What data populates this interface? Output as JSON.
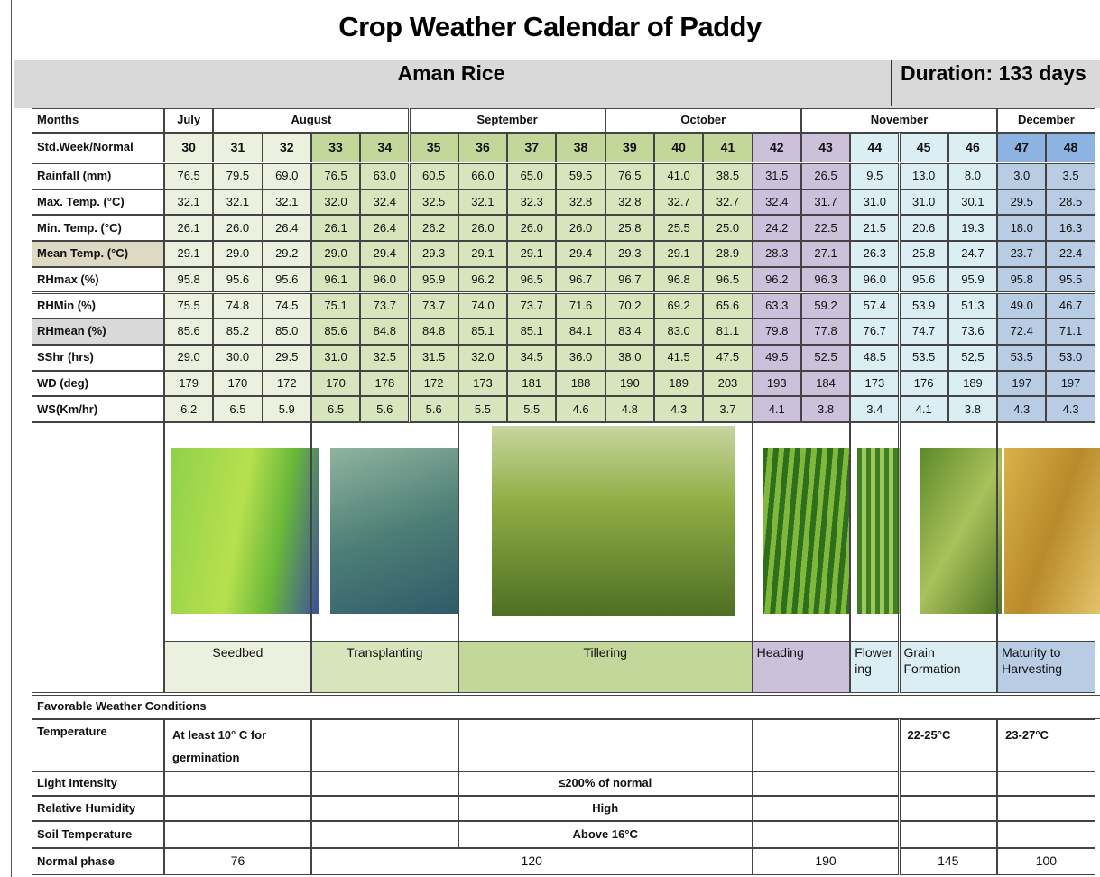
{
  "title": "Crop Weather Calendar of Paddy",
  "header": {
    "crop": "Aman Rice",
    "duration": "Duration: 133 days"
  },
  "months": {
    "label": "Months",
    "names": [
      "July",
      "August",
      "September",
      "October",
      "November",
      "December"
    ]
  },
  "weeks": {
    "label": "Std.Week/Normal",
    "values": [
      30,
      31,
      32,
      33,
      34,
      35,
      36,
      37,
      38,
      39,
      40,
      41,
      42,
      43,
      44,
      45,
      46,
      47,
      48
    ]
  },
  "rows": [
    {
      "label": "Rainfall (mm)",
      "values": [
        "76.5",
        "79.5",
        "69.0",
        "76.5",
        "63.0",
        "60.5",
        "66.0",
        "65.0",
        "59.5",
        "76.5",
        "41.0",
        "38.5",
        "31.5",
        "26.5",
        "9.5",
        "13.0",
        "8.0",
        "3.0",
        "3.5"
      ]
    },
    {
      "label": "Max. Temp. (°C)",
      "values": [
        "32.1",
        "32.1",
        "32.1",
        "32.0",
        "32.4",
        "32.5",
        "32.1",
        "32.3",
        "32.8",
        "32.8",
        "32.7",
        "32.7",
        "32.4",
        "31.7",
        "31.0",
        "31.0",
        "30.1",
        "29.5",
        "28.5"
      ]
    },
    {
      "label": "Min. Temp. (°C)",
      "values": [
        "26.1",
        "26.0",
        "26.4",
        "26.1",
        "26.4",
        "26.2",
        "26.0",
        "26.0",
        "26.0",
        "25.8",
        "25.5",
        "25.0",
        "24.2",
        "22.5",
        "21.5",
        "20.6",
        "19.3",
        "18.0",
        "16.3"
      ]
    },
    {
      "label": "Mean Temp. (°C)",
      "values": [
        "29.1",
        "29.0",
        "29.2",
        "29.0",
        "29.4",
        "29.3",
        "29.1",
        "29.1",
        "29.4",
        "29.3",
        "29.1",
        "28.9",
        "28.3",
        "27.1",
        "26.3",
        "25.8",
        "24.7",
        "23.7",
        "22.4"
      ]
    },
    {
      "label": "RHmax (%)",
      "values": [
        "95.8",
        "95.6",
        "95.6",
        "96.1",
        "96.0",
        "95.9",
        "96.2",
        "96.5",
        "96.7",
        "96.7",
        "96.8",
        "96.5",
        "96.2",
        "96.3",
        "96.0",
        "95.6",
        "95.9",
        "95.8",
        "95.5"
      ]
    },
    {
      "label": "RHMin (%)",
      "values": [
        "75.5",
        "74.8",
        "74.5",
        "75.1",
        "73.7",
        "73.7",
        "74.0",
        "73.7",
        "71.6",
        "70.2",
        "69.2",
        "65.6",
        "63.3",
        "59.2",
        "57.4",
        "53.9",
        "51.3",
        "49.0",
        "46.7"
      ]
    },
    {
      "label": "RHmean (%)",
      "values": [
        "85.6",
        "85.2",
        "85.0",
        "85.6",
        "84.8",
        "84.8",
        "85.1",
        "85.1",
        "84.1",
        "83.4",
        "83.0",
        "81.1",
        "79.8",
        "77.8",
        "76.7",
        "74.7",
        "73.6",
        "72.4",
        "71.1"
      ]
    },
    {
      "label": "SShr (hrs)",
      "values": [
        "29.0",
        "30.0",
        "29.5",
        "31.0",
        "32.5",
        "31.5",
        "32.0",
        "34.5",
        "36.0",
        "38.0",
        "41.5",
        "47.5",
        "49.5",
        "52.5",
        "48.5",
        "53.5",
        "52.5",
        "53.5",
        "53.0"
      ]
    },
    {
      "label": "WD (deg)",
      "values": [
        "179",
        "170",
        "172",
        "170",
        "178",
        "172",
        "173",
        "181",
        "188",
        "190",
        "189",
        "203",
        "193",
        "184",
        "173",
        "176",
        "189",
        "197",
        "197"
      ]
    },
    {
      "label": "WS(Km/hr)",
      "values": [
        "6.2",
        "6.5",
        "5.9",
        "6.5",
        "5.6",
        "5.6",
        "5.5",
        "5.5",
        "4.6",
        "4.8",
        "4.3",
        "3.7",
        "4.1",
        "3.8",
        "3.4",
        "4.1",
        "3.8",
        "4.3",
        "4.3"
      ]
    }
  ],
  "phases": [
    "Seedbed",
    "Transplanting",
    "Tillering",
    "Heading",
    "Flowering",
    "Grain Formation",
    "Maturity to Harvesting"
  ],
  "favorable": {
    "title": "Favorable Weather Conditions",
    "rows": [
      {
        "label": "Temperature",
        "cells": [
          "At least 10° C for germination",
          null,
          null,
          null,
          "22-25°C",
          "23-27°C"
        ]
      },
      {
        "label": "Light Intensity",
        "cells": [
          null,
          null,
          "≤200% of normal",
          null,
          null,
          null
        ]
      },
      {
        "label": "Relative Humidity",
        "cells": [
          null,
          null,
          "High",
          null,
          null,
          null
        ]
      },
      {
        "label": "Soil Temperature",
        "cells": [
          null,
          null,
          "Above 16°C",
          null,
          null,
          null
        ]
      }
    ]
  },
  "normal_phase": {
    "label": "Normal phase",
    "values": [
      76,
      120,
      190,
      145,
      100
    ]
  }
}
